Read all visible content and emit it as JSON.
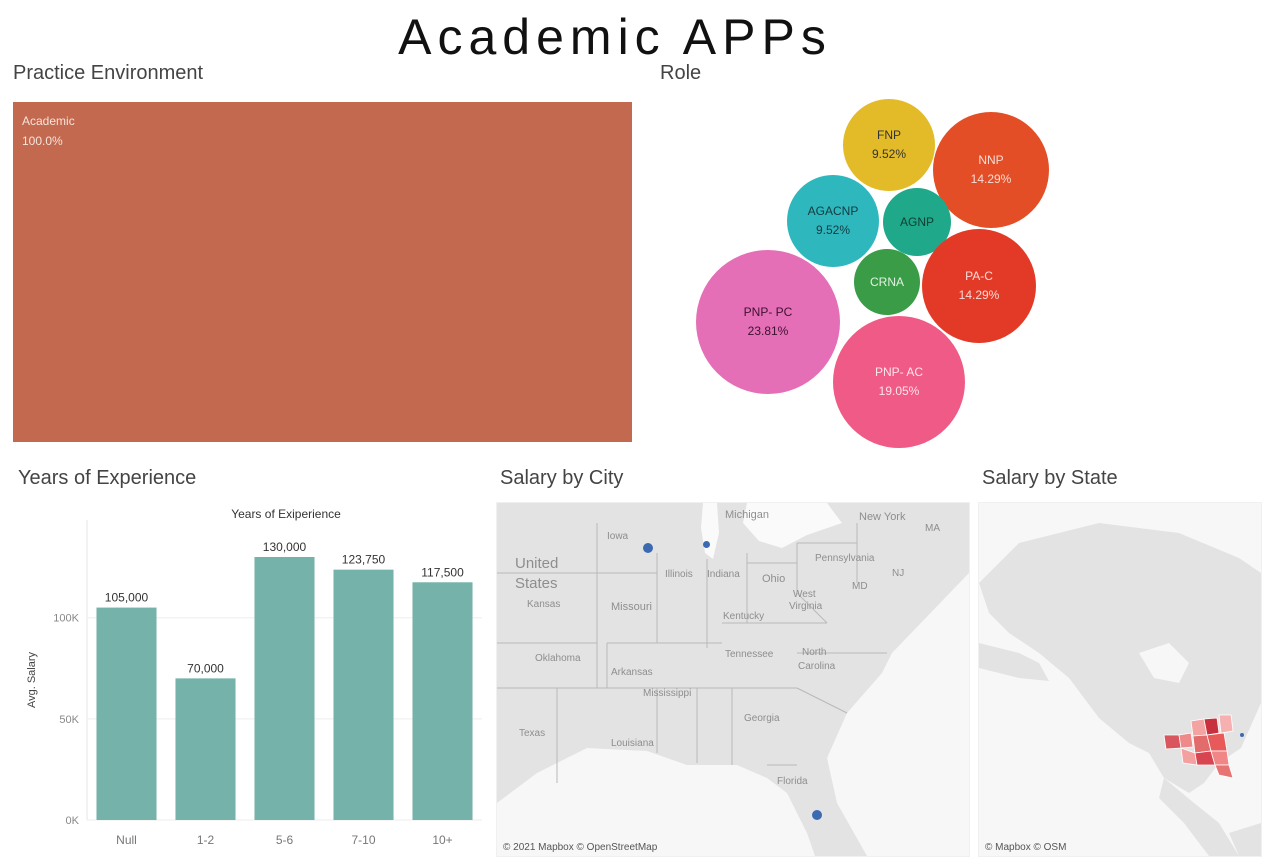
{
  "title": "Academic APPs",
  "practice": {
    "title": "Practice Environment",
    "label": "Academic",
    "value": "100.0%",
    "color": "#c2694f"
  },
  "role": {
    "title": "Role",
    "bubbles": [
      {
        "name": "FNP",
        "value": "9.52%",
        "color": "#e3bb29",
        "text": "#333333"
      },
      {
        "name": "NNP",
        "value": "14.29%",
        "color": "#e34e26",
        "text": "#f6ddd5"
      },
      {
        "name": "AGACNP",
        "value": "9.52%",
        "color": "#2eb8be",
        "text": "#123b3e"
      },
      {
        "name": "AGNP",
        "value": "",
        "color": "#1fa88a",
        "text": "#0d3f33"
      },
      {
        "name": "CRNA",
        "value": "",
        "color": "#3a9c46",
        "text": "#e0f2e2"
      },
      {
        "name": "PA-C",
        "value": "14.29%",
        "color": "#e33a27",
        "text": "#f8dcd7"
      },
      {
        "name": "PNP- PC",
        "value": "23.81%",
        "color": "#e46fb6",
        "text": "#3f1030"
      },
      {
        "name": "PNP- AC",
        "value": "19.05%",
        "color": "#f05a86",
        "text": "#fde3ea"
      }
    ]
  },
  "experience": {
    "section_title": "Years of Experience",
    "chart_title": "Years of Exiperience",
    "ylabel": "Avg. Salary",
    "bar_color": "#75b2aa"
  },
  "chart_data": {
    "type": "bar",
    "title": "Years of Exiperience",
    "categories": [
      "Null",
      "1-2",
      "5-6",
      "7-10",
      "10+"
    ],
    "values": [
      105000,
      70000,
      130000,
      123750,
      117500
    ],
    "value_labels": [
      "105,000",
      "70,000",
      "130,000",
      "123,750",
      "117,500"
    ],
    "ylabel": "Avg. Salary",
    "yticks": [
      0,
      50000,
      100000
    ],
    "ytick_labels": [
      "0K",
      "50K",
      "100K"
    ],
    "ylim": [
      0,
      140000
    ]
  },
  "city": {
    "title": "Salary by City",
    "attribution": "© 2021 Mapbox © OpenStreetMap",
    "labels": [
      "Michigan",
      "New York",
      "MA",
      "Iowa",
      "United",
      "States",
      "Illinois",
      "Indiana",
      "Ohio",
      "Pennsylvania",
      "NJ",
      "MD",
      "Kansas",
      "Missouri",
      "West",
      "Virginia",
      "Kentucky",
      "Oklahoma",
      "Arkansas",
      "Tennessee",
      "North",
      "Carolina",
      "Mississippi",
      "Texas",
      "Louisiana",
      "Georgia",
      "Florida"
    ]
  },
  "state": {
    "title": "Salary by State",
    "attribution": "© Mapbox © OSM"
  }
}
